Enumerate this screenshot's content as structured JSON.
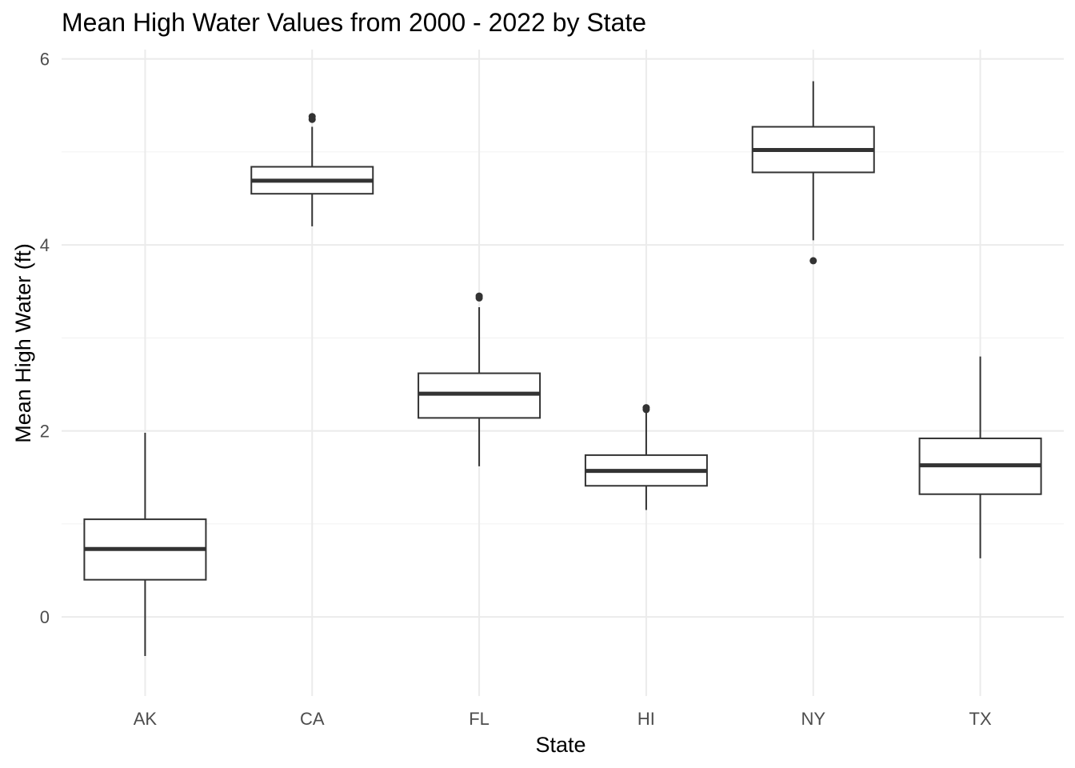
{
  "chart_data": {
    "type": "boxplot",
    "title": "Mean High Water Values from 2000 - 2022 by State",
    "xlabel": "State",
    "ylabel": "Mean High Water (ft)",
    "ylim": [
      -0.85,
      6.1
    ],
    "yticks": [
      0,
      2,
      4,
      6
    ],
    "grid": true,
    "categories": [
      "AK",
      "CA",
      "FL",
      "HI",
      "NY",
      "TX"
    ],
    "boxes": [
      {
        "category": "AK",
        "whisker_low": -0.42,
        "q1": 0.4,
        "median": 0.73,
        "q3": 1.05,
        "whisker_high": 1.98,
        "outliers": []
      },
      {
        "category": "CA",
        "whisker_low": 4.2,
        "q1": 4.55,
        "median": 4.69,
        "q3": 4.84,
        "whisker_high": 5.27,
        "outliers": [
          5.35,
          5.38
        ]
      },
      {
        "category": "FL",
        "whisker_low": 1.62,
        "q1": 2.14,
        "median": 2.4,
        "q3": 2.62,
        "whisker_high": 3.33,
        "outliers": [
          3.43,
          3.45
        ]
      },
      {
        "category": "HI",
        "whisker_low": 1.15,
        "q1": 1.41,
        "median": 1.57,
        "q3": 1.74,
        "whisker_high": 2.2,
        "outliers": [
          2.23,
          2.25
        ]
      },
      {
        "category": "NY",
        "whisker_low": 4.05,
        "q1": 4.78,
        "median": 5.02,
        "q3": 5.27,
        "whisker_high": 5.76,
        "outliers": [
          3.83
        ]
      },
      {
        "category": "TX",
        "whisker_low": 0.63,
        "q1": 1.32,
        "median": 1.63,
        "q3": 1.92,
        "whisker_high": 2.8,
        "outliers": []
      }
    ]
  }
}
